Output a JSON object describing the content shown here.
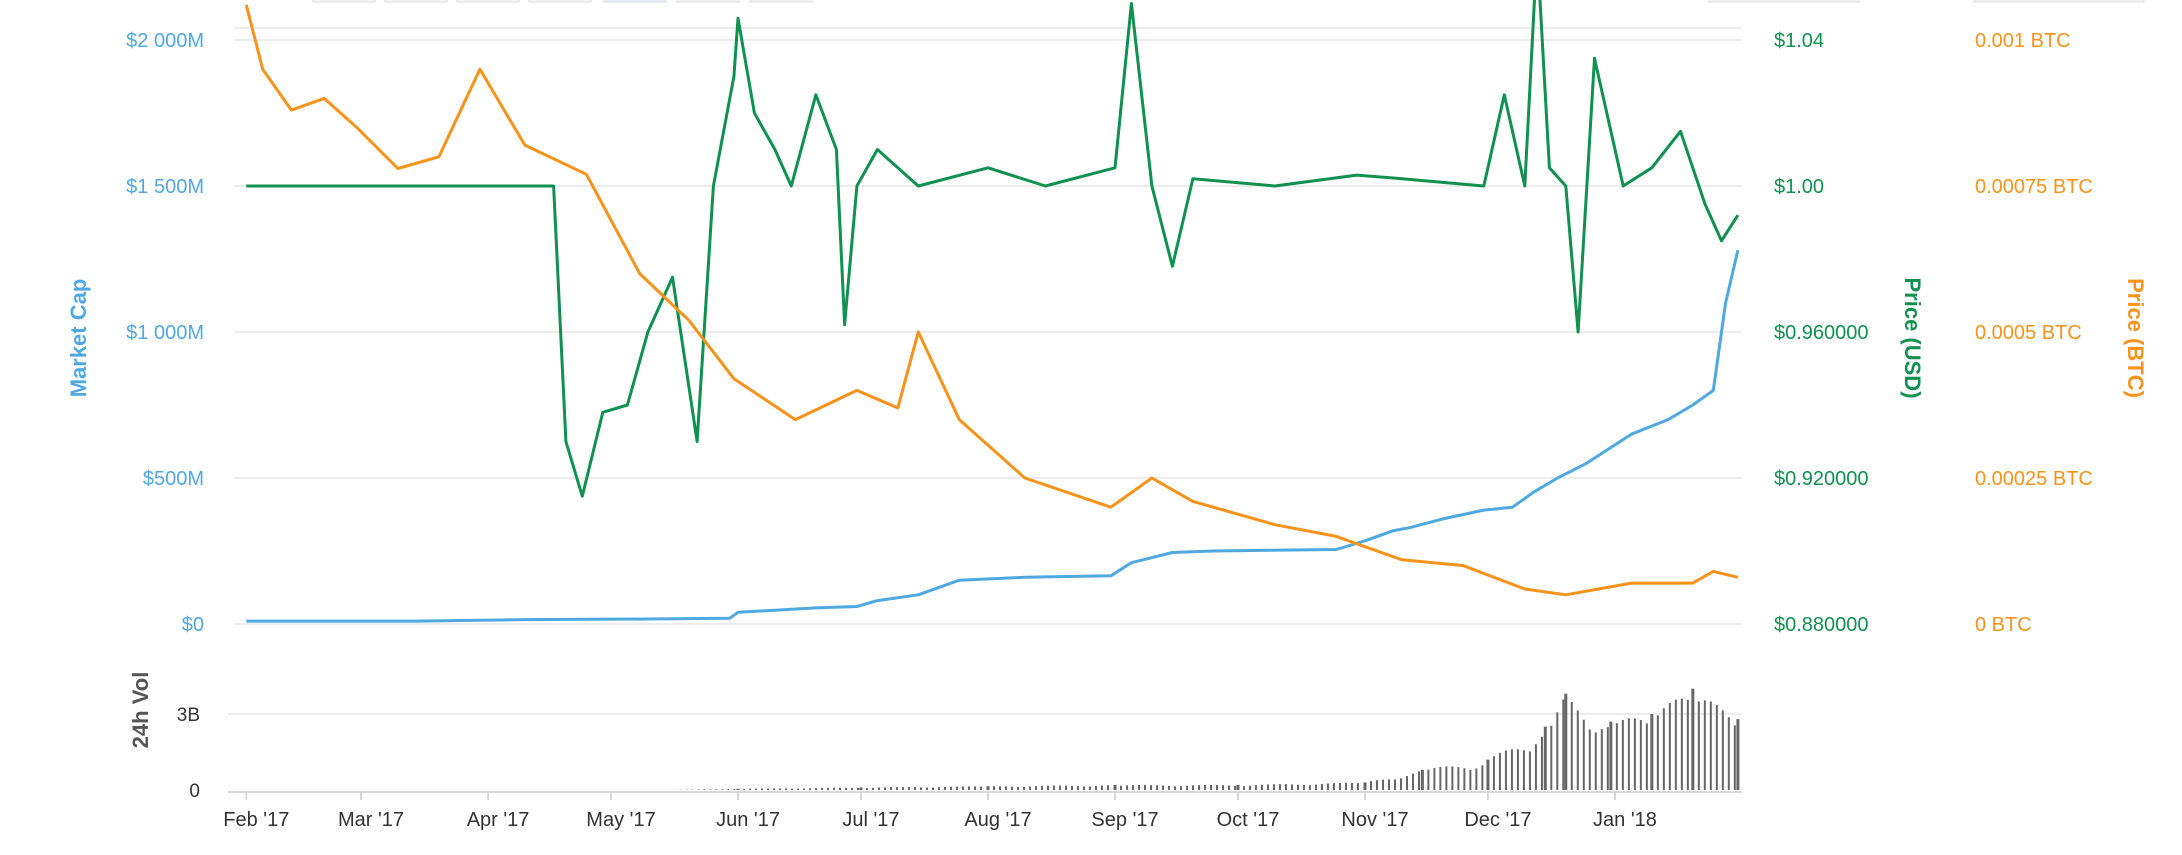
{
  "chart_data": {
    "type": "line",
    "x": [
      "2017-02-01",
      "2017-03-01",
      "2017-04-01",
      "2017-05-01",
      "2017-06-01",
      "2017-07-01",
      "2017-08-01",
      "2017-09-01",
      "2017-10-01",
      "2017-11-01",
      "2017-12-01",
      "2018-01-01"
    ],
    "x_tick_labels": [
      "Feb '17",
      "Mar '17",
      "Apr '17",
      "May '17",
      "Jun '17",
      "Jul '17",
      "Aug '17",
      "Sep '17",
      "Oct '17",
      "Nov '17",
      "Dec '17",
      "Jan '18"
    ],
    "axes": {
      "market_cap": {
        "title": "Market Cap",
        "ticks": [
          "$0",
          "$500M",
          "$1 000M",
          "$1 500M",
          "$2 000M"
        ],
        "ylim": [
          0,
          2000000000
        ]
      },
      "price_usd": {
        "title": "Price (USD)",
        "ticks": [
          "$0.880000",
          "$0.920000",
          "$0.960000",
          "$1.00",
          "$1.04"
        ],
        "ylim": [
          0.88,
          1.04
        ]
      },
      "price_btc": {
        "title": "Price (BTC)",
        "ticks": [
          "0 BTC",
          "0.00025 BTC",
          "0.0005 BTC",
          "0.00075 BTC",
          "0.001 BTC"
        ],
        "ylim": [
          0,
          0.001
        ]
      },
      "volume": {
        "title": "24h Vol",
        "ticks": [
          "0",
          "3B"
        ],
        "ylim": [
          0,
          3000000000
        ]
      }
    },
    "series": [
      {
        "key": "market_cap",
        "color": "#4fa9e0",
        "points": [
          [
            "2017-02-01",
            10000000
          ],
          [
            "2017-03-15",
            10000000
          ],
          [
            "2017-03-25",
            12000000
          ],
          [
            "2017-04-10",
            15000000
          ],
          [
            "2017-05-10",
            17000000
          ],
          [
            "2017-05-30",
            20000000
          ],
          [
            "2017-06-01",
            40000000
          ],
          [
            "2017-06-20",
            55000000
          ],
          [
            "2017-06-30",
            60000000
          ],
          [
            "2017-07-05",
            80000000
          ],
          [
            "2017-07-15",
            100000000
          ],
          [
            "2017-07-25",
            150000000
          ],
          [
            "2017-08-10",
            160000000
          ],
          [
            "2017-08-31",
            165000000
          ],
          [
            "2017-09-05",
            210000000
          ],
          [
            "2017-09-15",
            245000000
          ],
          [
            "2017-09-25",
            250000000
          ],
          [
            "2017-10-25",
            255000000
          ],
          [
            "2017-11-01",
            285000000
          ],
          [
            "2017-11-08",
            320000000
          ],
          [
            "2017-11-12",
            330000000
          ],
          [
            "2017-11-20",
            360000000
          ],
          [
            "2017-11-30",
            390000000
          ],
          [
            "2017-12-07",
            400000000
          ],
          [
            "2017-12-12",
            450000000
          ],
          [
            "2017-12-18",
            500000000
          ],
          [
            "2017-12-25",
            550000000
          ],
          [
            "2018-01-05",
            650000000
          ],
          [
            "2018-01-14",
            700000000
          ],
          [
            "2018-01-20",
            750000000
          ],
          [
            "2018-01-25",
            800000000
          ],
          [
            "2018-01-28",
            1100000000
          ],
          [
            "2018-01-31",
            1280000000
          ]
        ]
      },
      {
        "key": "price_usd",
        "color": "#109150",
        "points": [
          [
            "2017-02-01",
            1.0
          ],
          [
            "2017-04-17",
            1.0
          ],
          [
            "2017-04-20",
            0.93
          ],
          [
            "2017-04-24",
            0.915
          ],
          [
            "2017-04-29",
            0.938
          ],
          [
            "2017-05-05",
            0.94
          ],
          [
            "2017-05-10",
            0.96
          ],
          [
            "2017-05-16",
            0.975
          ],
          [
            "2017-05-22",
            0.93
          ],
          [
            "2017-05-26",
            1.0
          ],
          [
            "2017-05-31",
            1.03
          ],
          [
            "2017-06-01",
            1.046
          ],
          [
            "2017-06-05",
            1.02
          ],
          [
            "2017-06-10",
            1.01
          ],
          [
            "2017-06-14",
            1.0
          ],
          [
            "2017-06-20",
            1.025
          ],
          [
            "2017-06-25",
            1.01
          ],
          [
            "2017-06-27",
            0.962
          ],
          [
            "2017-06-30",
            1.0
          ],
          [
            "2017-07-05",
            1.01
          ],
          [
            "2017-07-15",
            1.0
          ],
          [
            "2017-08-01",
            1.005
          ],
          [
            "2017-08-15",
            1.0
          ],
          [
            "2017-09-01",
            1.005
          ],
          [
            "2017-09-05",
            1.05
          ],
          [
            "2017-09-10",
            1.0
          ],
          [
            "2017-09-15",
            0.978
          ],
          [
            "2017-09-20",
            1.002
          ],
          [
            "2017-10-10",
            1.0
          ],
          [
            "2017-10-30",
            1.003
          ],
          [
            "2017-11-10",
            1.002
          ],
          [
            "2017-11-30",
            1.0
          ],
          [
            "2017-12-05",
            1.025
          ],
          [
            "2017-12-10",
            1.0
          ],
          [
            "2017-12-13",
            1.065
          ],
          [
            "2017-12-16",
            1.005
          ],
          [
            "2017-12-20",
            1.0
          ],
          [
            "2017-12-23",
            0.96
          ],
          [
            "2017-12-27",
            1.035
          ],
          [
            "2018-01-03",
            1.0
          ],
          [
            "2018-01-10",
            1.005
          ],
          [
            "2018-01-17",
            1.015
          ],
          [
            "2018-01-23",
            0.995
          ],
          [
            "2018-01-27",
            0.985
          ],
          [
            "2018-01-31",
            0.992
          ]
        ]
      },
      {
        "key": "price_btc",
        "color": "#f7931a",
        "points": [
          [
            "2017-02-01",
            0.00106
          ],
          [
            "2017-02-05",
            0.00095
          ],
          [
            "2017-02-12",
            0.00088
          ],
          [
            "2017-02-20",
            0.0009
          ],
          [
            "2017-02-28",
            0.00085
          ],
          [
            "2017-03-10",
            0.00078
          ],
          [
            "2017-03-20",
            0.0008
          ],
          [
            "2017-03-30",
            0.00095
          ],
          [
            "2017-04-10",
            0.00082
          ],
          [
            "2017-04-25",
            0.00077
          ],
          [
            "2017-05-08",
            0.0006
          ],
          [
            "2017-05-20",
            0.00052
          ],
          [
            "2017-05-31",
            0.00042
          ],
          [
            "2017-06-15",
            0.00035
          ],
          [
            "2017-06-30",
            0.0004
          ],
          [
            "2017-07-10",
            0.00037
          ],
          [
            "2017-07-15",
            0.0005
          ],
          [
            "2017-07-25",
            0.00035
          ],
          [
            "2017-08-10",
            0.00025
          ],
          [
            "2017-08-31",
            0.0002
          ],
          [
            "2017-09-10",
            0.00025
          ],
          [
            "2017-09-20",
            0.00021
          ],
          [
            "2017-10-10",
            0.00017
          ],
          [
            "2017-10-25",
            0.00015
          ],
          [
            "2017-11-10",
            0.00011
          ],
          [
            "2017-11-25",
            0.0001
          ],
          [
            "2017-12-10",
            6e-05
          ],
          [
            "2017-12-20",
            5e-05
          ],
          [
            "2018-01-05",
            7e-05
          ],
          [
            "2018-01-20",
            7e-05
          ],
          [
            "2018-01-25",
            9e-05
          ],
          [
            "2018-01-31",
            8e-05
          ]
        ]
      },
      {
        "key": "volume",
        "color": "#666666",
        "points": [
          [
            "2017-02-01",
            0
          ],
          [
            "2017-05-15",
            0
          ],
          [
            "2017-06-01",
            50000000
          ],
          [
            "2017-07-01",
            100000000
          ],
          [
            "2017-08-01",
            150000000
          ],
          [
            "2017-09-01",
            200000000
          ],
          [
            "2017-10-01",
            200000000
          ],
          [
            "2017-11-01",
            300000000
          ],
          [
            "2017-11-15",
            800000000
          ],
          [
            "2017-12-01",
            1200000000
          ],
          [
            "2017-12-15",
            2500000000
          ],
          [
            "2017-12-20",
            3800000000
          ],
          [
            "2017-12-31",
            2700000000
          ],
          [
            "2018-01-10",
            3000000000
          ],
          [
            "2018-01-20",
            4000000000
          ],
          [
            "2018-01-31",
            2800000000
          ]
        ]
      }
    ]
  }
}
